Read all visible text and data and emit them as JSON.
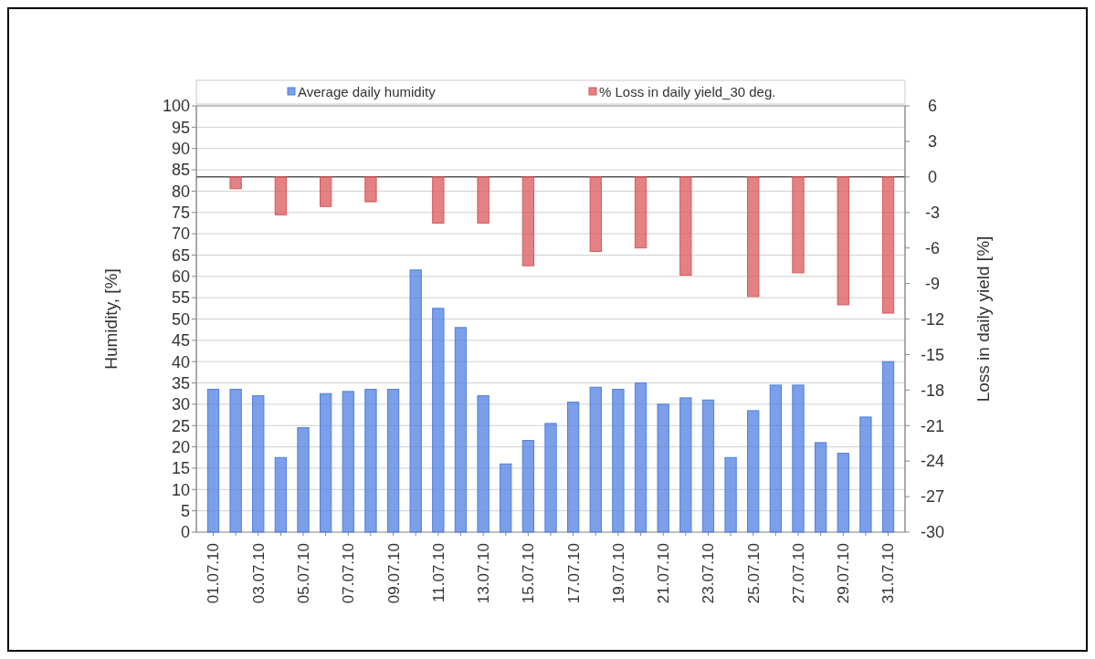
{
  "chart_data": {
    "type": "bar",
    "categories": [
      "01.07.10",
      null,
      "03.07.10",
      null,
      "05.07.10",
      null,
      "07.07.10",
      null,
      "09.07.10",
      null,
      "11.07.10",
      null,
      "13.07.10",
      null,
      "15.07.10",
      null,
      "17.07.10",
      null,
      "19.07.10",
      null,
      "21.07.10",
      null,
      "23.07.10",
      null,
      "25.07.10",
      null,
      "27.07.10",
      null,
      "29.07.10",
      null,
      "31.07.10"
    ],
    "series": [
      {
        "name": "Average daily humidity",
        "color": "#4f7fe0",
        "values": [
          33.5,
          33.5,
          32,
          17.5,
          24.5,
          32.5,
          33,
          33.5,
          33.5,
          61.5,
          52.5,
          48,
          32,
          16,
          21.5,
          25.5,
          30.5,
          34,
          33.5,
          35,
          30,
          31.5,
          31,
          17.5,
          28.5,
          34.5,
          34.5,
          21,
          18.5,
          27,
          40
        ]
      },
      {
        "name": "% Loss in daily yield_30 deg.",
        "color": "#d9575a",
        "axis": "y2",
        "values": [
          null,
          -1,
          null,
          -3.2,
          null,
          -2.5,
          null,
          -2.1,
          null,
          null,
          -3.9,
          null,
          -3.9,
          null,
          -7.5,
          null,
          null,
          -6.3,
          null,
          -6,
          null,
          -8.3,
          null,
          null,
          -10.1,
          null,
          -8.1,
          null,
          -10.8,
          null,
          -11.5
        ]
      }
    ],
    "ylabel": "Humidity, [%]",
    "y2label": "Loss in daily yield [%]",
    "ylim": [
      0,
      100
    ],
    "yticks": [
      0,
      5,
      10,
      15,
      20,
      25,
      30,
      35,
      40,
      45,
      50,
      55,
      60,
      65,
      70,
      75,
      80,
      85,
      90,
      95,
      100
    ],
    "y2lim": [
      -30,
      6
    ],
    "y2ticks": [
      -30,
      -27,
      -24,
      -21,
      -18,
      -15,
      -12,
      -9,
      -6,
      -3,
      0,
      3,
      6
    ],
    "grid": "y",
    "legend": "top"
  }
}
